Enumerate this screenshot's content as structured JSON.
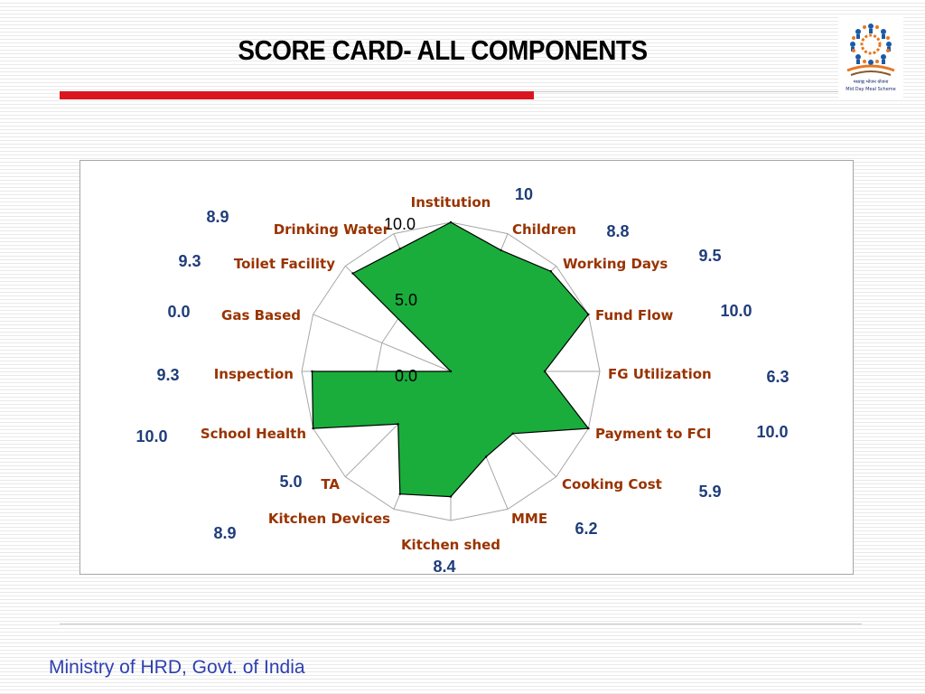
{
  "slide": {
    "title": "SCORE CARD- ALL COMPONENTS",
    "footer": "Ministry of HRD, Govt. of India",
    "logo": {
      "script_text": "मध्याह्न भोजन योजना",
      "caption": "Mid Day Meal Scheme"
    }
  },
  "colors": {
    "accent_red": "#d9161f",
    "fill_green": "#1aad3c",
    "category_label": "#993300",
    "value_label": "#1f3d7a",
    "footer_blue": "#2e3fb0"
  },
  "chart_data": {
    "type": "radar",
    "rmax": 10,
    "tick_values": [
      0,
      5,
      10
    ],
    "tick_labels": [
      "0.0",
      "5.0",
      "10.0"
    ],
    "categories": [
      "Institution",
      "Children",
      "Working Days",
      "Fund Flow",
      "FG Utilization",
      "Payment to FCI",
      "Cooking Cost",
      "MME",
      "Kitchen shed",
      "Kitchen Devices",
      "TA",
      "School Health",
      "Inspection",
      "Gas Based",
      "Toilet Facility",
      "Drinking Water"
    ],
    "values": [
      10,
      8.8,
      9.5,
      10.0,
      6.3,
      10.0,
      5.9,
      6.2,
      8.4,
      8.9,
      5.0,
      10.0,
      9.3,
      0.0,
      9.3,
      8.9
    ],
    "value_labels": [
      "10",
      "8.8",
      "9.5",
      "10.0",
      "6.3",
      "10.0",
      "5.9",
      "6.2",
      "8.4",
      "8.9",
      "5.0",
      "10.0",
      "9.3",
      "0.0",
      "9.3",
      "8.9"
    ],
    "grid": true,
    "legend": "none"
  }
}
